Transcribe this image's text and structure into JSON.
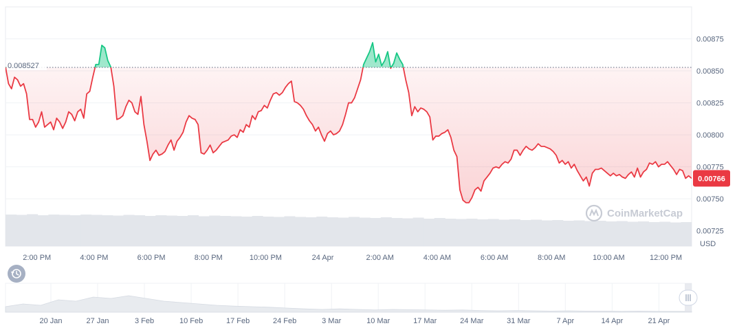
{
  "chart_data": {
    "type": "line",
    "currency_label": "USD",
    "y_ticks": [
      "0.00725",
      "0.00750",
      "0.00775",
      "0.00800",
      "0.00825",
      "0.00850",
      "0.00875"
    ],
    "ylim": [
      0.00713,
      0.009
    ],
    "x_tick_labels": [
      "2:00 PM",
      "4:00 PM",
      "6:00 PM",
      "8:00 PM",
      "10:00 PM",
      "24 Apr",
      "2:00 AM",
      "4:00 AM",
      "6:00 AM",
      "8:00 AM",
      "10:00 AM",
      "12:00 PM"
    ],
    "reference": {
      "value": 0.008527,
      "label": "0.008527"
    },
    "current": {
      "value": 0.00766,
      "label": "0.00766"
    },
    "colors": {
      "up": "#16c784",
      "down": "#ea3943",
      "grid": "#eff2f5",
      "volume": "#e3e6eb"
    },
    "series": [
      {
        "values": [
          0.00853,
          0.0084,
          0.00836,
          0.00845,
          0.00843,
          0.00838,
          0.0084,
          0.00832,
          0.00812,
          0.00812,
          0.00806,
          0.0081,
          0.00818,
          0.00806,
          0.00808,
          0.0081,
          0.00804,
          0.00813,
          0.0081,
          0.00805,
          0.0081,
          0.00818,
          0.00816,
          0.00811,
          0.00818,
          0.0082,
          0.00813,
          0.00832,
          0.00834,
          0.00845,
          0.00855,
          0.00855,
          0.0087,
          0.00868,
          0.00858,
          0.00853,
          0.00838,
          0.00812,
          0.00813,
          0.00815,
          0.00822,
          0.00827,
          0.00825,
          0.00818,
          0.00816,
          0.0083,
          0.00808,
          0.00795,
          0.0078,
          0.00785,
          0.00788,
          0.00784,
          0.00785,
          0.00787,
          0.00792,
          0.00796,
          0.00788,
          0.00795,
          0.00798,
          0.00802,
          0.0081,
          0.00815,
          0.00813,
          0.00812,
          0.00808,
          0.00786,
          0.00785,
          0.00788,
          0.00792,
          0.00786,
          0.00788,
          0.00791,
          0.00794,
          0.00795,
          0.00796,
          0.00799,
          0.008,
          0.00798,
          0.00804,
          0.00802,
          0.00808,
          0.00806,
          0.00815,
          0.00812,
          0.00818,
          0.00819,
          0.00823,
          0.00821,
          0.00827,
          0.00832,
          0.00833,
          0.00831,
          0.00833,
          0.00837,
          0.0084,
          0.00842,
          0.00826,
          0.00825,
          0.00823,
          0.0082,
          0.00815,
          0.00811,
          0.00808,
          0.00803,
          0.00806,
          0.008,
          0.00795,
          0.00801,
          0.00803,
          0.008,
          0.00801,
          0.00803,
          0.00808,
          0.00816,
          0.00825,
          0.00825,
          0.00829,
          0.00836,
          0.00843,
          0.00855,
          0.0086,
          0.00865,
          0.00872,
          0.00857,
          0.00863,
          0.00854,
          0.00858,
          0.00865,
          0.00852,
          0.00856,
          0.00864,
          0.00859,
          0.00855,
          0.00843,
          0.00833,
          0.00815,
          0.00822,
          0.00818,
          0.00821,
          0.0082,
          0.00818,
          0.00814,
          0.00796,
          0.00799,
          0.00799,
          0.00801,
          0.00802,
          0.00804,
          0.00798,
          0.00788,
          0.00783,
          0.00757,
          0.00749,
          0.00747,
          0.00747,
          0.00751,
          0.00757,
          0.00759,
          0.00756,
          0.00764,
          0.00767,
          0.0077,
          0.00774,
          0.00775,
          0.00774,
          0.00777,
          0.00779,
          0.00778,
          0.00781,
          0.00788,
          0.00788,
          0.00784,
          0.00788,
          0.00791,
          0.00789,
          0.00788,
          0.0079,
          0.00793,
          0.00791,
          0.00791,
          0.0079,
          0.00789,
          0.00787,
          0.00784,
          0.00778,
          0.0078,
          0.00777,
          0.00779,
          0.00774,
          0.00777,
          0.00772,
          0.00768,
          0.00764,
          0.00767,
          0.0076,
          0.0077,
          0.00773,
          0.00773,
          0.00774,
          0.00772,
          0.0077,
          0.00768,
          0.0077,
          0.00768,
          0.00769,
          0.00767,
          0.00766,
          0.00769,
          0.00771,
          0.00767,
          0.00774,
          0.00767,
          0.00771,
          0.00773,
          0.00778,
          0.00777,
          0.00779,
          0.00775,
          0.00777,
          0.00777,
          0.00779,
          0.00776,
          0.00773,
          0.00769,
          0.00773,
          0.00772,
          0.00766,
          0.00768,
          0.00766
        ]
      }
    ],
    "volume": [
      0.92,
      0.91,
      0.93,
      0.9,
      0.92,
      0.91,
      0.9,
      0.92,
      0.91,
      0.9,
      0.89,
      0.91,
      0.9,
      0.88,
      0.9,
      0.89,
      0.88,
      0.9,
      0.87,
      0.89,
      0.88,
      0.87,
      0.86,
      0.88,
      0.86,
      0.85,
      0.87,
      0.85,
      0.84,
      0.86,
      0.84,
      0.83,
      0.85,
      0.83,
      0.82,
      0.84,
      0.82,
      0.81,
      0.83,
      0.8,
      0.82,
      0.8,
      0.79,
      0.8,
      0.78,
      0.79,
      0.77,
      0.78,
      0.76,
      0.77,
      0.75,
      0.76,
      0.74,
      0.75,
      0.73,
      0.74,
      0.72,
      0.73,
      0.71,
      0.72,
      0.7,
      0.71,
      0.69,
      0.7
    ]
  },
  "watermark": "CoinMarketCap",
  "navigator": {
    "labels": [
      "20 Jan",
      "27 Jan",
      "3 Feb",
      "10 Feb",
      "17 Feb",
      "24 Feb",
      "3 Mar",
      "10 Mar",
      "17 Mar",
      "24 Mar",
      "31 Mar",
      "7 Apr",
      "14 Apr",
      "21 Apr"
    ],
    "values": [
      0.2,
      0.3,
      0.25,
      0.45,
      0.4,
      0.55,
      0.5,
      0.6,
      0.5,
      0.4,
      0.35,
      0.3,
      0.25,
      0.22,
      0.2,
      0.18,
      0.15,
      0.12,
      0.1,
      0.12,
      0.1,
      0.08,
      0.1,
      0.09,
      0.08,
      0.07,
      0.08,
      0.06,
      0.05,
      0.06,
      0.05,
      0.04,
      0.05,
      0.04,
      0.04,
      0.03,
      0.04,
      0.03,
      0.03,
      0.03
    ]
  },
  "icons": {
    "history": "history-icon",
    "handle": "drag-handle-icon",
    "watermark_logo": "coinmarketcap-logo-icon"
  }
}
